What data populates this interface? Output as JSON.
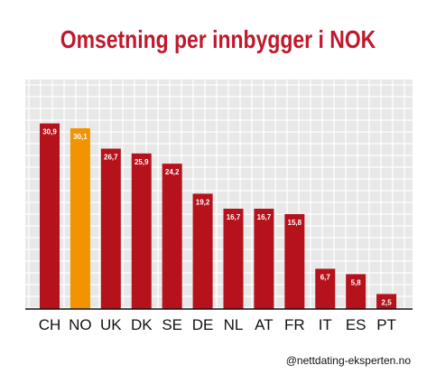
{
  "title": "Omsetning per innbygger i NOK",
  "credit": "@nettdating-eksperten.no",
  "colors": {
    "title": "#c0182c",
    "bar": "#b5121b",
    "highlight": "#f29400",
    "grid_bg": "#e8e8e8",
    "grid_line": "#ffffff",
    "axis": "#111111"
  },
  "chart_data": {
    "type": "bar",
    "title": "Omsetning per innbygger i NOK",
    "xlabel": "",
    "ylabel": "",
    "categories": [
      "CH",
      "NO",
      "UK",
      "DK",
      "SE",
      "DE",
      "NL",
      "AT",
      "FR",
      "IT",
      "ES",
      "PT"
    ],
    "values": [
      30.9,
      30.1,
      26.7,
      25.9,
      24.2,
      19.2,
      16.7,
      16.7,
      15.8,
      6.7,
      5.8,
      2.5
    ],
    "value_labels": [
      "30,9",
      "30,1",
      "26,7",
      "25,9",
      "24,2",
      "19,2",
      "16,7",
      "16,7",
      "15,8",
      "6,7",
      "5,8",
      "2,5"
    ],
    "highlight_category": "NO",
    "ylim": [
      0,
      34
    ],
    "grid": true,
    "legend": "none"
  }
}
